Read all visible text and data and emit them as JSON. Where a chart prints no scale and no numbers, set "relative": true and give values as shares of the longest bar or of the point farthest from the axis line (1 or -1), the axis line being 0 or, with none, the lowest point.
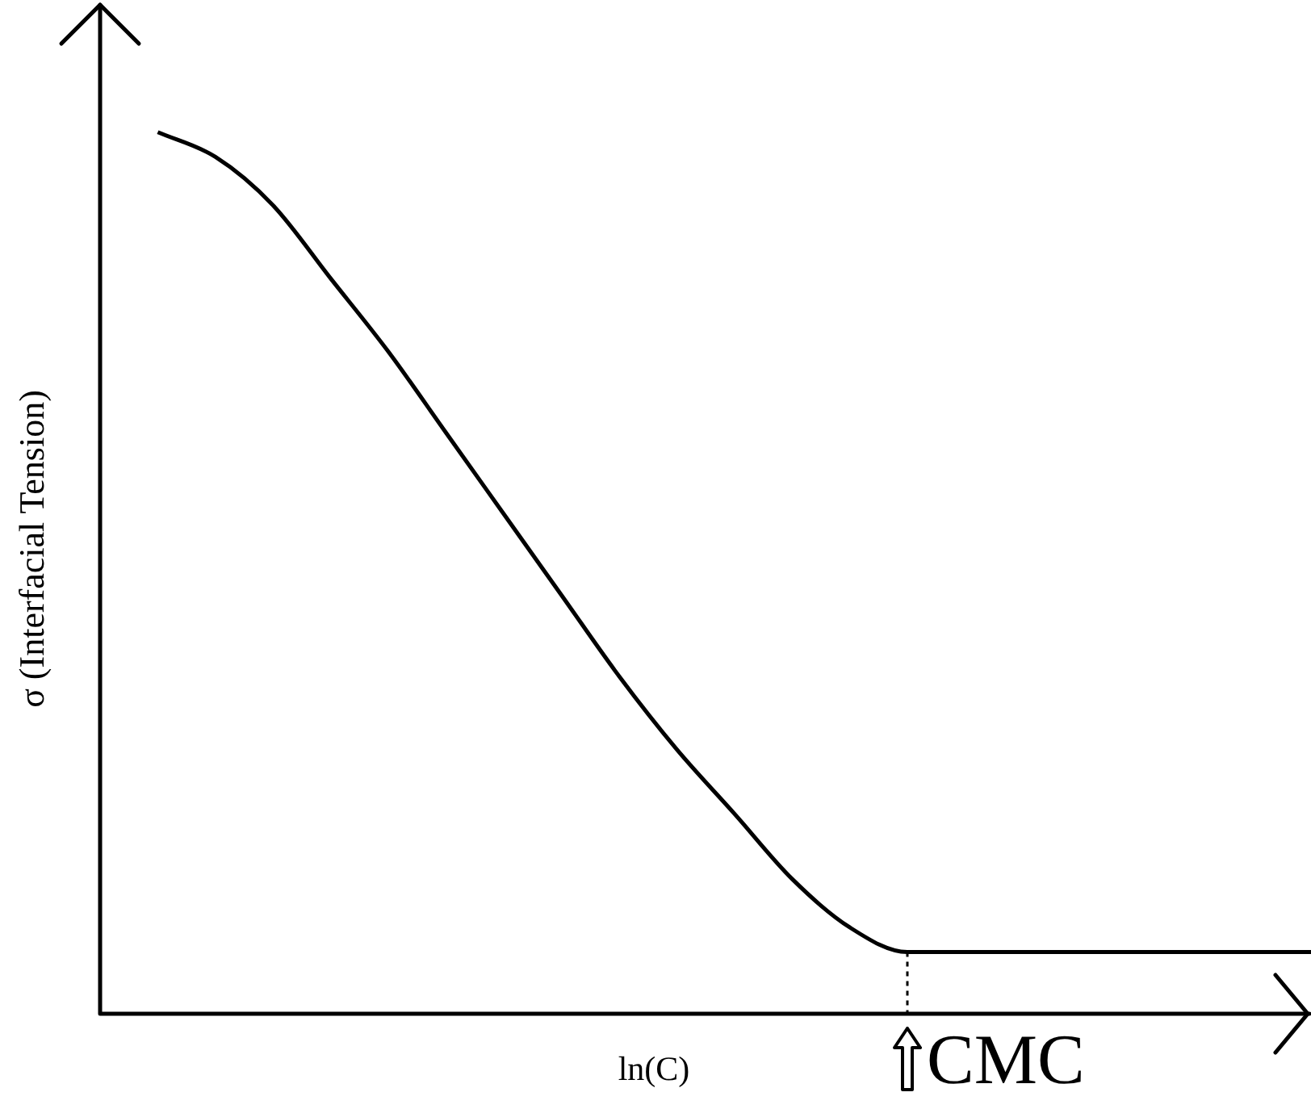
{
  "chart_data": {
    "type": "line",
    "xlabel": "ln(C)",
    "ylabel": "σ (Interfacial Tension)",
    "relative": true,
    "legend": false,
    "marker": "none",
    "line_style": "solid",
    "categories": [
      null,
      null,
      null,
      null,
      null,
      null,
      null,
      null,
      null,
      null,
      null,
      null,
      null,
      null,
      null,
      null,
      null,
      null,
      null,
      null,
      null
    ],
    "series": [
      {
        "color": "#000000",
        "values": [
          1.0,
          0.972,
          0.917,
          0.834,
          0.751,
          0.659,
          0.567,
          0.475,
          0.383,
          0.3,
          0.227,
          0.153,
          0.098,
          0.07,
          0.07,
          0.07,
          0.07,
          0.07,
          0.07,
          0.07,
          0.07
        ]
      }
    ],
    "annotations": [
      "CMC"
    ]
  }
}
